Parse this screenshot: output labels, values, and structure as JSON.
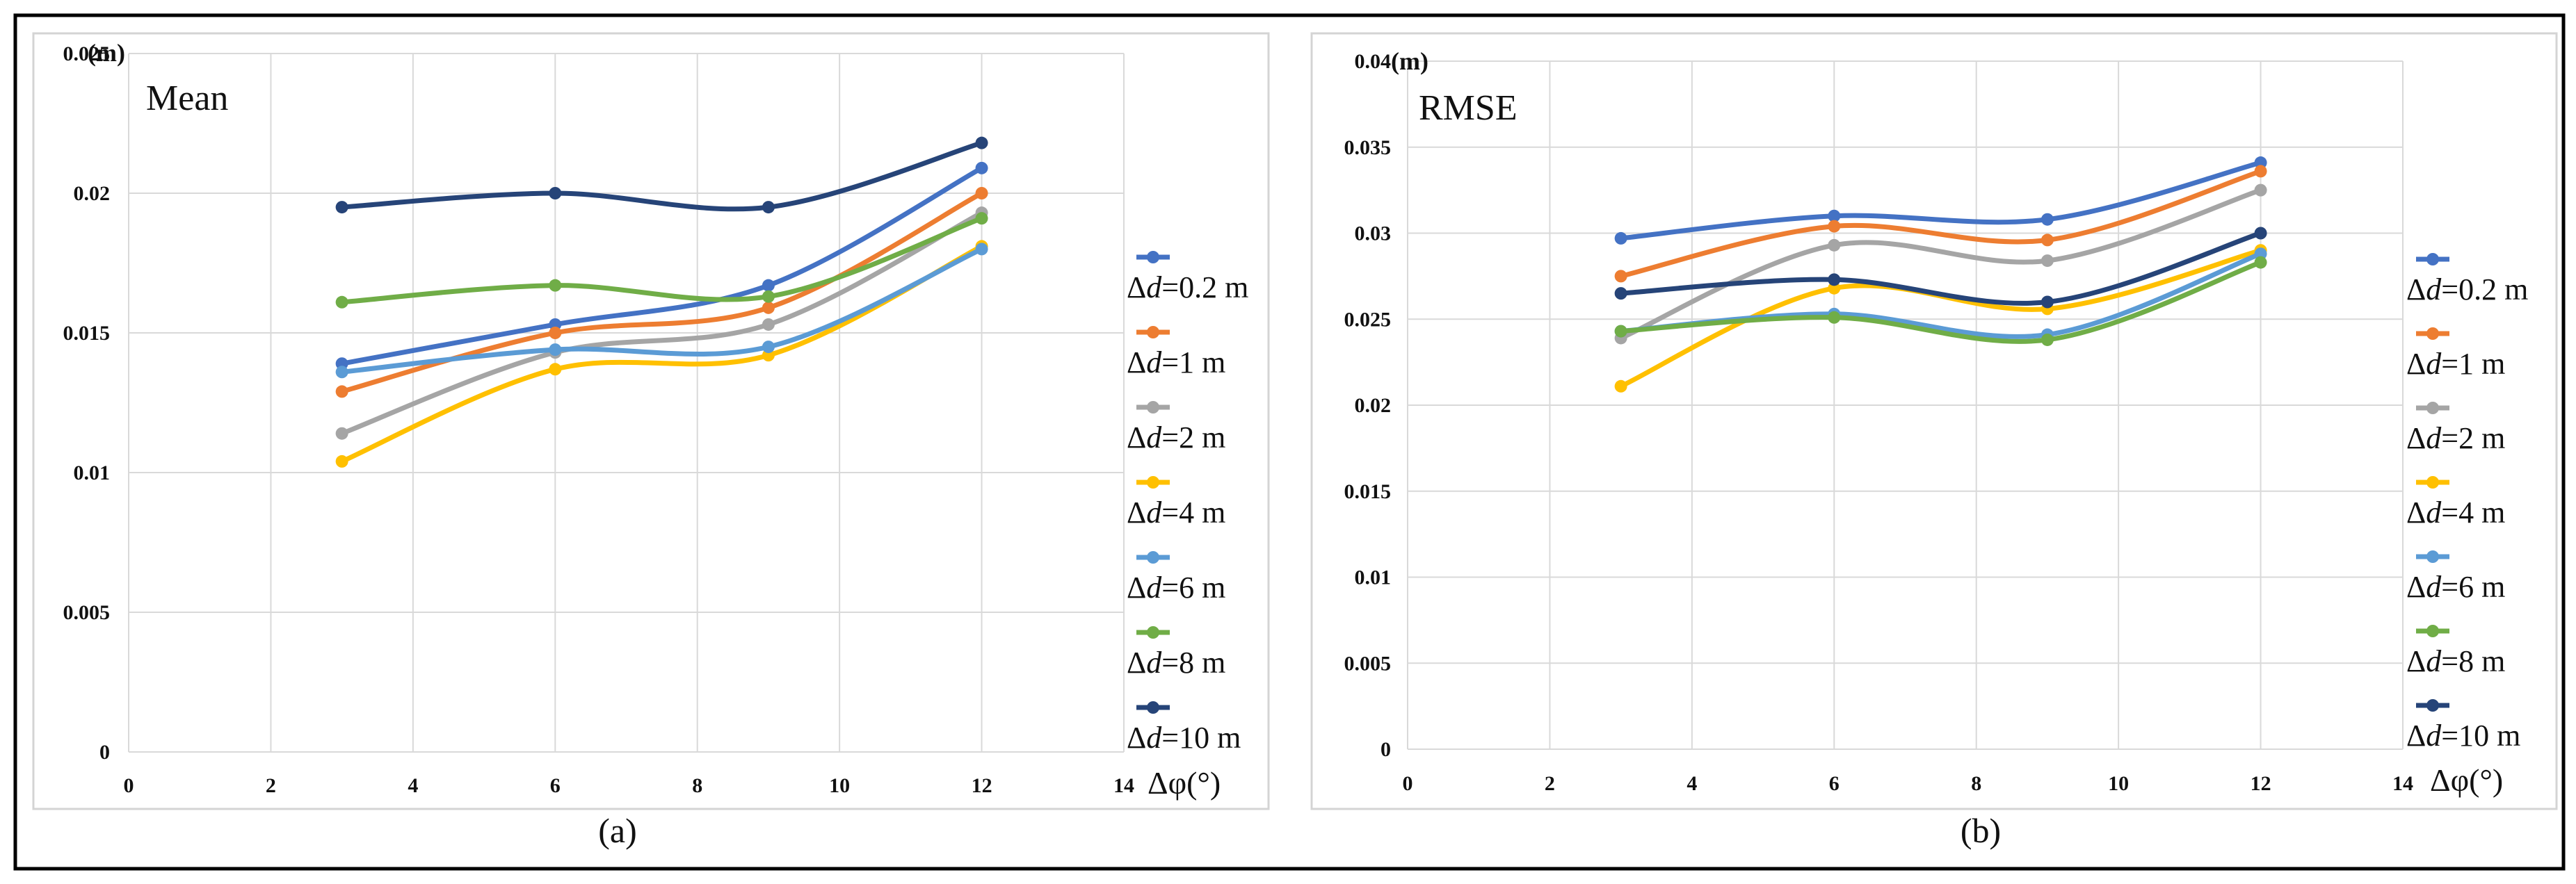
{
  "figure": {
    "caption_a": "(a)",
    "caption_b": "(b)"
  },
  "chart_data": [
    {
      "type": "line",
      "title": "Mean",
      "ylabel": "(m)",
      "xlabel": "Δφ(°)",
      "x": [
        3,
        6,
        9,
        12
      ],
      "xlim": [
        0,
        14
      ],
      "xticks": [
        0,
        2,
        4,
        6,
        8,
        10,
        12,
        14
      ],
      "ylim": [
        0,
        0.025
      ],
      "yticks": [
        0,
        0.005,
        0.01,
        0.015,
        0.02,
        0.025
      ],
      "ytick_labels": [
        "0",
        "0.005",
        "0.01",
        "0.015",
        "0.02",
        "0.025"
      ],
      "grid": true,
      "legend_position": "right",
      "series": [
        {
          "name": "Δd=0.2 m",
          "prefix": "Δ",
          "var": "d",
          "suffix": "=0.2 m",
          "color": "#4472C4",
          "values": [
            0.0139,
            0.0153,
            0.0167,
            0.0209
          ]
        },
        {
          "name": "Δd=1 m",
          "prefix": "Δ",
          "var": "d",
          "suffix": "=1 m",
          "color": "#ED7D31",
          "values": [
            0.0129,
            0.015,
            0.0159,
            0.02
          ]
        },
        {
          "name": "Δd=2 m",
          "prefix": "Δ",
          "var": "d",
          "suffix": "=2 m",
          "color": "#A5A5A5",
          "values": [
            0.0114,
            0.0143,
            0.0153,
            0.0193
          ]
        },
        {
          "name": "Δd=4 m",
          "prefix": "Δ",
          "var": "d",
          "suffix": "=4 m",
          "color": "#FFC000",
          "values": [
            0.0104,
            0.0137,
            0.0142,
            0.0181
          ]
        },
        {
          "name": "Δd=6 m",
          "prefix": "Δ",
          "var": "d",
          "suffix": "=6 m",
          "color": "#5B9BD5",
          "values": [
            0.0136,
            0.0144,
            0.0145,
            0.018
          ]
        },
        {
          "name": "Δd=8 m",
          "prefix": "Δ",
          "var": "d",
          "suffix": "=8 m",
          "color": "#70AD47",
          "values": [
            0.0161,
            0.0167,
            0.0163,
            0.0191
          ]
        },
        {
          "name": "Δd=10 m",
          "prefix": "Δ",
          "var": "d",
          "suffix": "=10 m",
          "color": "#264478",
          "values": [
            0.0195,
            0.02,
            0.0195,
            0.0218
          ]
        }
      ]
    },
    {
      "type": "line",
      "title": "RMSE",
      "ylabel": "(m)",
      "xlabel": "Δφ(°)",
      "x": [
        3,
        6,
        9,
        12
      ],
      "xlim": [
        0,
        14
      ],
      "xticks": [
        0,
        2,
        4,
        6,
        8,
        10,
        12,
        14
      ],
      "ylim": [
        0,
        0.04
      ],
      "yticks": [
        0,
        0.005,
        0.01,
        0.015,
        0.02,
        0.025,
        0.03,
        0.035,
        0.04
      ],
      "ytick_labels": [
        "0",
        "0.005",
        "0.01",
        "0.015",
        "0.02",
        "0.025",
        "0.03",
        "0.035",
        "0.04"
      ],
      "grid": true,
      "legend_position": "right",
      "series": [
        {
          "name": "Δd=0.2 m",
          "prefix": "Δ",
          "var": "d",
          "suffix": "=0.2 m",
          "color": "#4472C4",
          "values": [
            0.0297,
            0.031,
            0.0308,
            0.0341
          ]
        },
        {
          "name": "Δd=1 m",
          "prefix": "Δ",
          "var": "d",
          "suffix": "=1 m",
          "color": "#ED7D31",
          "values": [
            0.0275,
            0.0304,
            0.0296,
            0.0336
          ]
        },
        {
          "name": "Δd=2 m",
          "prefix": "Δ",
          "var": "d",
          "suffix": "=2 m",
          "color": "#A5A5A5",
          "values": [
            0.0239,
            0.0293,
            0.0284,
            0.0325
          ]
        },
        {
          "name": "Δd=4 m",
          "prefix": "Δ",
          "var": "d",
          "suffix": "=4 m",
          "color": "#FFC000",
          "values": [
            0.0211,
            0.0268,
            0.0256,
            0.029
          ]
        },
        {
          "name": "Δd=6 m",
          "prefix": "Δ",
          "var": "d",
          "suffix": "=6 m",
          "color": "#5B9BD5",
          "values": [
            0.0243,
            0.0253,
            0.0241,
            0.0288
          ]
        },
        {
          "name": "Δd=8 m",
          "prefix": "Δ",
          "var": "d",
          "suffix": "=8 m",
          "color": "#70AD47",
          "values": [
            0.0243,
            0.0251,
            0.0238,
            0.0283
          ]
        },
        {
          "name": "Δd=10 m",
          "prefix": "Δ",
          "var": "d",
          "suffix": "=10 m",
          "color": "#264478",
          "values": [
            0.0265,
            0.0273,
            0.026,
            0.03
          ]
        }
      ]
    }
  ]
}
